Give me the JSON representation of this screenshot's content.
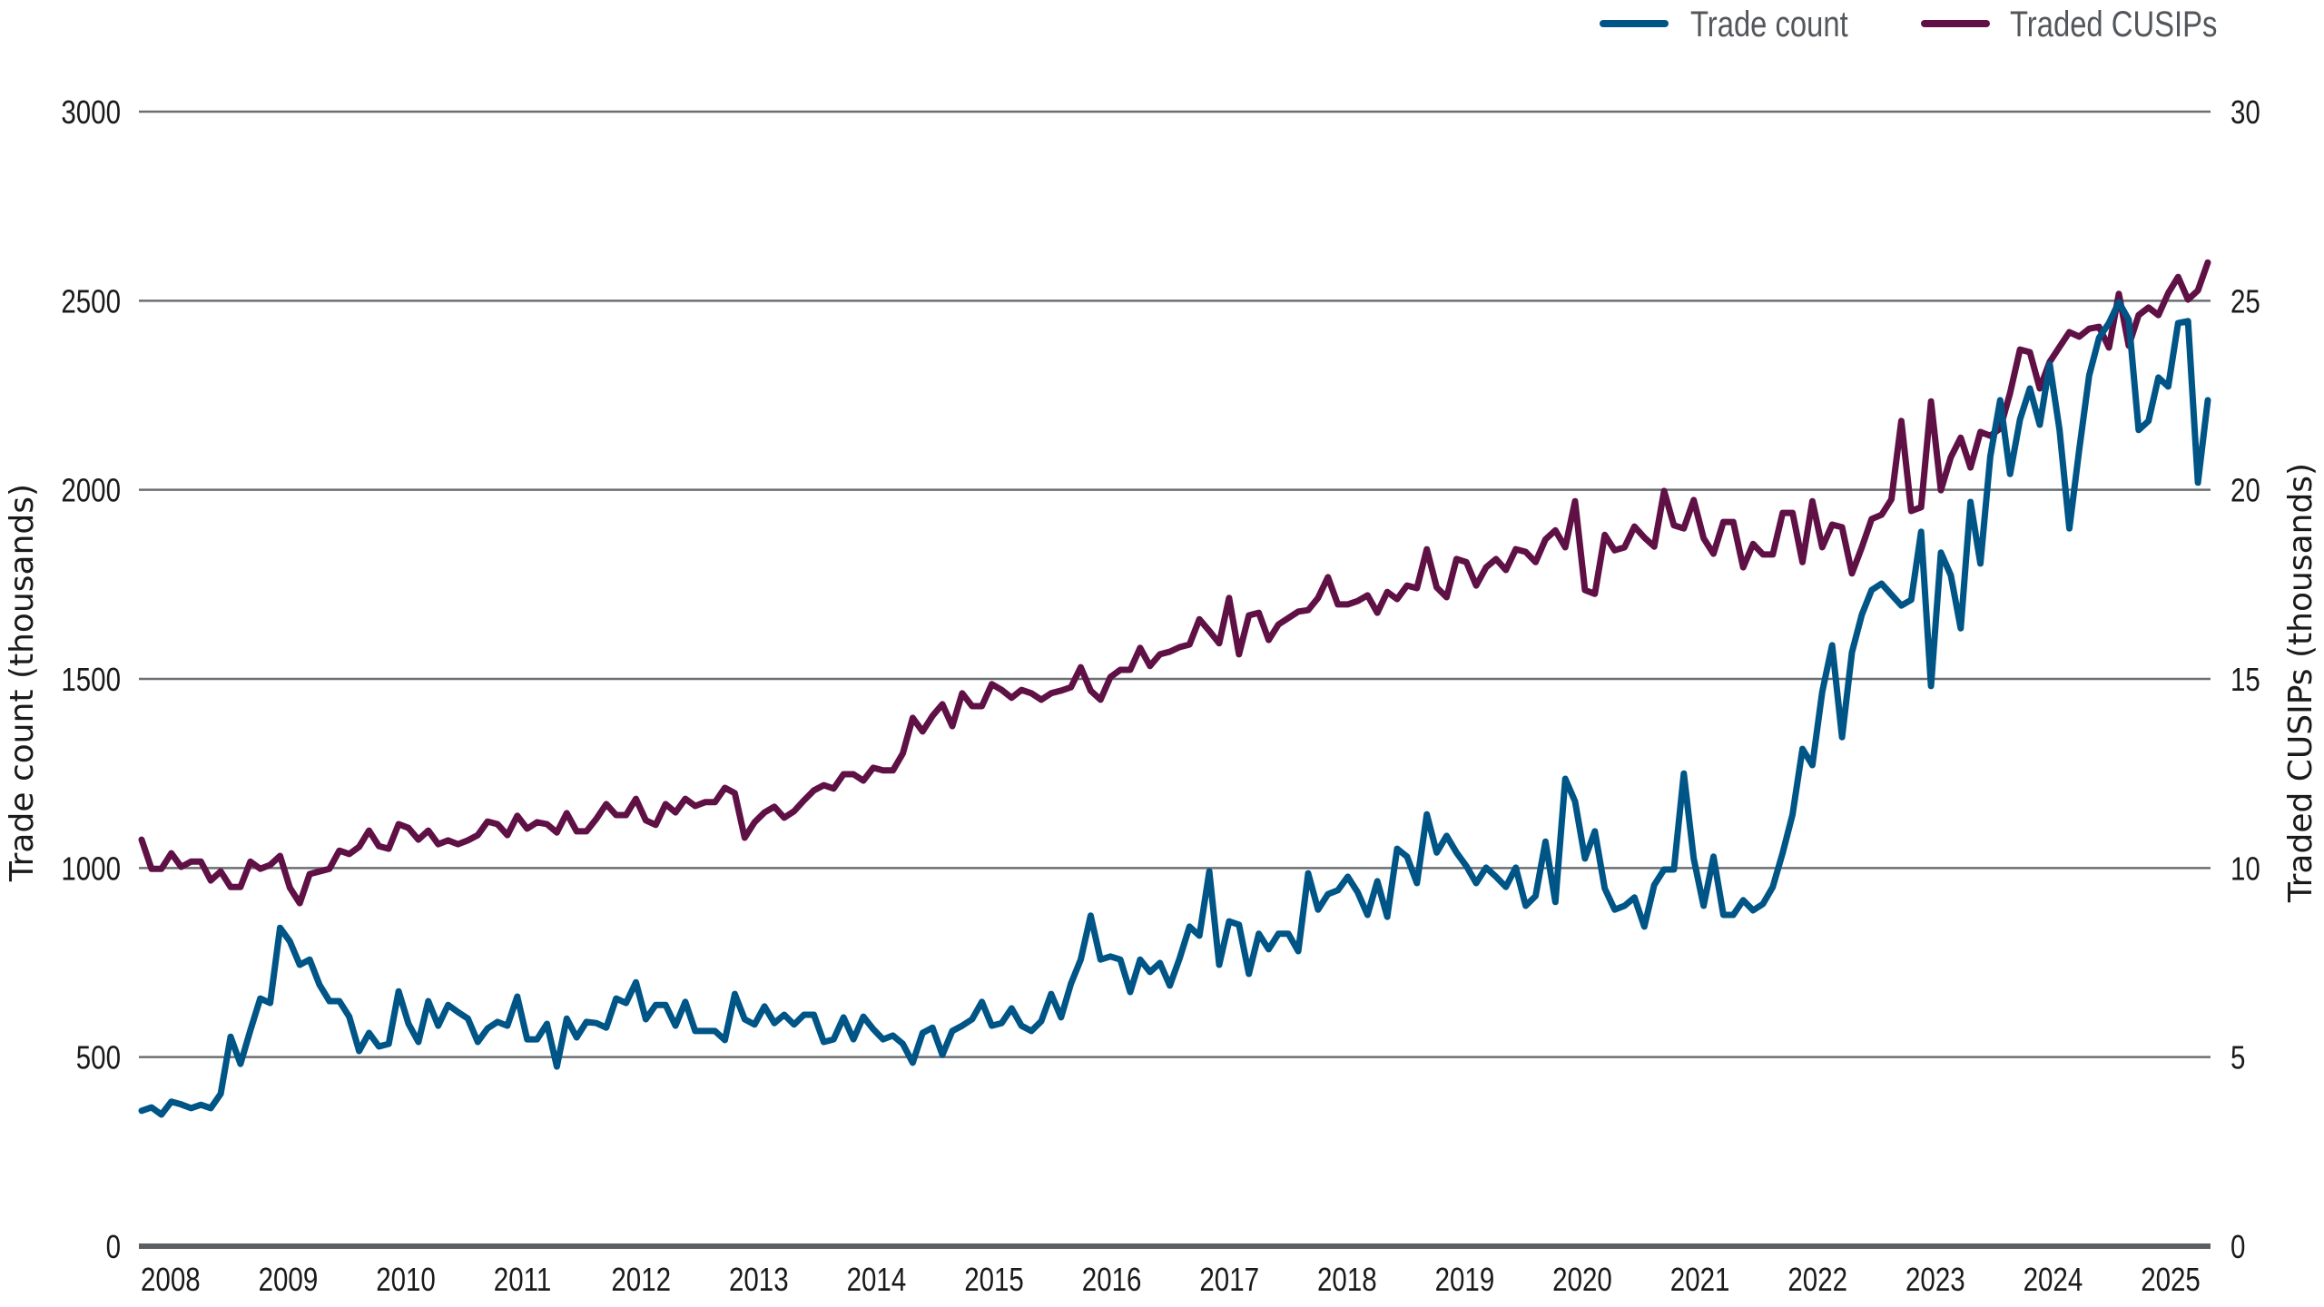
{
  "chart_data": {
    "type": "line",
    "title": "",
    "xlabel": "",
    "ylabel": "Trade count (thousands)",
    "ylabel_right": "Traded CUSIPs (thousands)",
    "ylim": [
      0,
      3000
    ],
    "ylim_right": [
      0,
      30
    ],
    "yticks": [
      0,
      500,
      1000,
      1500,
      2000,
      2500,
      3000
    ],
    "yticks_right": [
      0,
      5,
      10,
      15,
      20,
      25,
      30
    ],
    "x_tick_labels": [
      "2008",
      "2009",
      "2010",
      "2011",
      "2012",
      "2013",
      "2014",
      "2015",
      "2016",
      "2017",
      "2018",
      "2019",
      "2020",
      "2021",
      "2022",
      "2023",
      "2024",
      "2025"
    ],
    "x_start": "2008-01",
    "x_frequency": "monthly",
    "grid": true,
    "legend_position": "top-right",
    "series": [
      {
        "name": "Trade count",
        "axis": "left",
        "color": "#005587",
        "values": [
          358,
          367,
          348,
          382,
          375,
          365,
          374,
          365,
          403,
          554,
          482,
          571,
          655,
          643,
          842,
          806,
          744,
          758,
          691,
          648,
          648,
          607,
          516,
          564,
          528,
          535,
          674,
          588,
          540,
          648,
          583,
          638,
          619,
          602,
          540,
          576,
          593,
          583,
          660,
          547,
          547,
          588,
          475,
          602,
          552,
          593,
          590,
          578,
          655,
          643,
          698,
          600,
          638,
          638,
          583,
          646,
          569,
          569,
          569,
          545,
          667,
          600,
          586,
          634,
          590,
          612,
          586,
          612,
          612,
          540,
          547,
          605,
          547,
          607,
          574,
          547,
          557,
          535,
          485,
          564,
          578,
          506,
          569,
          583,
          600,
          646,
          583,
          590,
          629,
          583,
          569,
          595,
          667,
          605,
          694,
          758,
          874,
          758,
          766,
          758,
          672,
          758,
          725,
          749,
          689,
          761,
          845,
          821,
          991,
          744,
          859,
          850,
          720,
          826,
          785,
          826,
          826,
          780,
          986,
          890,
          931,
          941,
          977,
          936,
          876,
          965,
          871,
          1051,
          1030,
          960,
          1142,
          1041,
          1085,
          1041,
          1005,
          960,
          1001,
          977,
          950,
          1001,
          900,
          926,
          1070,
          910,
          1236,
          1176,
          1025,
          1097,
          946,
          890,
          900,
          922,
          845,
          955,
          996,
          996,
          1250,
          1025,
          900,
          1030,
          876,
          876,
          915,
          888,
          905,
          950,
          1040,
          1142,
          1315,
          1272,
          1466,
          1589,
          1346,
          1570,
          1670,
          1735,
          1752,
          1723,
          1694,
          1709,
          1889,
          1481,
          1834,
          1774,
          1634,
          1968,
          1805,
          2088,
          2237,
          2042,
          2186,
          2268,
          2172,
          2333,
          2158,
          1898,
          2107,
          2302,
          2402,
          2441,
          2496,
          2450,
          2158,
          2182,
          2297,
          2273,
          2441,
          2446,
          2019,
          2237
        ]
      },
      {
        "name": "Traded CUSIPs",
        "axis": "right",
        "color": "#5f1145",
        "values": [
          10.75,
          9.98,
          9.98,
          10.39,
          10.03,
          10.17,
          10.17,
          9.67,
          9.91,
          9.5,
          9.5,
          10.17,
          9.98,
          10.08,
          10.32,
          9.48,
          9.07,
          9.84,
          9.91,
          9.98,
          10.46,
          10.37,
          10.56,
          10.99,
          10.58,
          10.51,
          11.16,
          11.06,
          10.75,
          10.99,
          10.63,
          10.73,
          10.63,
          10.73,
          10.87,
          11.23,
          11.16,
          10.87,
          11.38,
          11.04,
          11.21,
          11.16,
          10.94,
          11.45,
          10.97,
          10.97,
          11.3,
          11.69,
          11.4,
          11.4,
          11.83,
          11.26,
          11.14,
          11.69,
          11.47,
          11.83,
          11.64,
          11.74,
          11.74,
          12.12,
          11.98,
          10.8,
          11.21,
          11.47,
          11.62,
          11.33,
          11.5,
          11.79,
          12.05,
          12.19,
          12.1,
          12.48,
          12.48,
          12.31,
          12.65,
          12.58,
          12.58,
          13.03,
          13.97,
          13.61,
          14.02,
          14.33,
          13.75,
          14.62,
          14.28,
          14.28,
          14.86,
          14.71,
          14.5,
          14.71,
          14.62,
          14.45,
          14.62,
          14.69,
          14.78,
          15.31,
          14.69,
          14.45,
          15.05,
          15.24,
          15.24,
          15.82,
          15.34,
          15.65,
          15.72,
          15.84,
          15.91,
          16.58,
          16.27,
          15.94,
          17.14,
          15.65,
          16.68,
          16.75,
          16.03,
          16.44,
          16.61,
          16.78,
          16.82,
          17.14,
          17.69,
          16.97,
          16.97,
          17.06,
          17.21,
          16.75,
          17.3,
          17.11,
          17.47,
          17.4,
          18.43,
          17.42,
          17.16,
          18.17,
          18.09,
          17.47,
          17.95,
          18.17,
          17.88,
          18.43,
          18.36,
          18.09,
          18.69,
          18.93,
          18.48,
          19.7,
          17.35,
          17.25,
          18.81,
          18.4,
          18.48,
          19.03,
          18.74,
          18.5,
          19.97,
          19.06,
          18.98,
          19.73,
          18.72,
          18.31,
          19.15,
          19.15,
          17.95,
          18.57,
          18.29,
          18.29,
          19.39,
          19.39,
          18.09,
          19.7,
          18.48,
          19.08,
          19.01,
          17.79,
          18.48,
          19.23,
          19.34,
          19.75,
          21.82,
          19.44,
          19.54,
          22.34,
          19.99,
          20.86,
          21.38,
          20.59,
          21.53,
          21.43,
          21.62,
          22.56,
          23.71,
          23.64,
          22.68,
          23.38,
          23.78,
          24.17,
          24.05,
          24.26,
          24.31,
          23.76,
          25.18,
          23.81,
          24.62,
          24.82,
          24.62,
          25.2,
          25.63,
          25.03,
          25.27,
          26.01
        ]
      }
    ]
  },
  "legend": {
    "items": [
      {
        "label": "Trade count",
        "color": "#005587"
      },
      {
        "label": "Traded CUSIPs",
        "color": "#5f1145"
      }
    ]
  },
  "axes": {
    "left_title": "Trade count (thousands)",
    "right_title": "Traded CUSIPs (thousands)",
    "left_ticks": [
      "0",
      "500",
      "1000",
      "1500",
      "2000",
      "2500",
      "3000"
    ],
    "right_ticks": [
      "0",
      "5",
      "10",
      "15",
      "20",
      "25",
      "30"
    ],
    "x_ticks": [
      "2008",
      "2009",
      "2010",
      "2011",
      "2012",
      "2013",
      "2014",
      "2015",
      "2016",
      "2017",
      "2018",
      "2019",
      "2020",
      "2021",
      "2022",
      "2023",
      "2024",
      "2025"
    ]
  }
}
